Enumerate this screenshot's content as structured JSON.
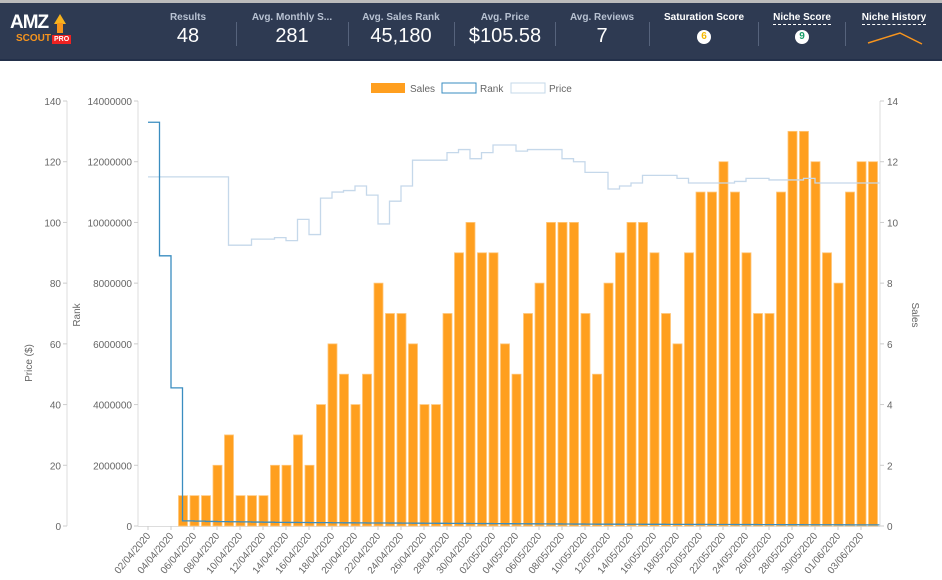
{
  "header": {
    "logo": {
      "amz": "AMZ",
      "scout": "SCOUT",
      "pro": "PRO"
    },
    "metrics": [
      {
        "label": "Results",
        "value": "48"
      },
      {
        "label": "Avg. Monthly S...",
        "value": "281"
      },
      {
        "label": "Avg. Sales Rank",
        "value": "45,180"
      },
      {
        "label": "Avg. Price",
        "value": "$105.58"
      },
      {
        "label": "Avg. Reviews",
        "value": "7"
      }
    ],
    "saturation": {
      "label": "Saturation Score",
      "value": "6",
      "color": "#f5b800"
    },
    "niche_score": {
      "label": "Niche Score",
      "value": "9",
      "color": "#1a9e6a"
    },
    "niche_history": {
      "label": "Niche History",
      "color": "#f7941d"
    }
  },
  "chart_data": {
    "type": "bar+line",
    "legend": [
      "Sales",
      "Rank",
      "Price"
    ],
    "legend_placement": "top-center",
    "colors": {
      "sales": "#ff9f1f",
      "rank": "#3a8dc0",
      "price": "#c5d8ea"
    },
    "x_labels": [
      "02/04/2020",
      "04/04/2020",
      "06/04/2020",
      "08/04/2020",
      "10/04/2020",
      "12/04/2020",
      "14/04/2020",
      "16/04/2020",
      "18/04/2020",
      "20/04/2020",
      "22/04/2020",
      "24/04/2020",
      "26/04/2020",
      "28/04/2020",
      "30/04/2020",
      "02/05/2020",
      "04/05/2020",
      "06/05/2020",
      "08/05/2020",
      "10/05/2020",
      "12/05/2020",
      "14/05/2020",
      "16/05/2020",
      "18/05/2020",
      "20/05/2020",
      "22/05/2020",
      "24/05/2020",
      "26/05/2020",
      "28/05/2020",
      "30/05/2020",
      "01/06/2020",
      "03/06/2020"
    ],
    "days": 64,
    "first_day": "02/04/2020",
    "sales_start_day_index": 3,
    "sales": [
      1,
      1,
      1,
      2,
      3,
      1,
      1,
      1,
      2,
      2,
      3,
      2,
      4,
      6,
      5,
      4,
      5,
      8,
      7,
      7,
      6,
      4,
      4,
      7,
      9,
      10,
      9,
      9,
      6,
      5,
      7,
      8,
      10,
      10,
      10,
      7,
      5,
      8,
      9,
      10,
      10,
      9,
      7,
      6,
      9,
      11,
      11,
      12,
      11,
      9,
      7,
      7,
      11,
      13,
      13,
      12,
      9,
      8,
      11,
      12,
      12
    ],
    "rank": [
      13300000,
      8900000,
      4550000,
      170000,
      160000,
      150000,
      145000,
      140000,
      135000,
      130000,
      125000,
      120000,
      118000,
      115000,
      112000,
      110000,
      108000,
      105000,
      103000,
      100000,
      98000,
      96000,
      94000,
      92000,
      90000,
      88000,
      86000,
      84000,
      82000,
      80000,
      78000,
      76000,
      74000,
      72000,
      70000,
      68000,
      66000,
      64000,
      62000,
      60000,
      59000,
      58000,
      57000,
      56000,
      55000,
      54000,
      53000,
      52000,
      51000,
      50000,
      49000,
      48000,
      47000,
      46000,
      45000,
      44000,
      43000,
      42000,
      41000,
      40000,
      39000,
      38000,
      37000,
      36000
    ],
    "price": [
      115,
      115,
      115,
      115,
      115,
      115,
      115,
      92.5,
      92.5,
      94.5,
      94.5,
      95,
      94,
      101,
      96,
      108,
      110,
      110.5,
      112,
      109,
      99.5,
      107,
      112,
      120.5,
      120.5,
      120.5,
      123,
      124,
      121,
      123,
      125.5,
      125.5,
      123.5,
      124,
      124,
      124,
      121,
      120,
      116.5,
      116.5,
      111,
      112,
      113,
      115.5,
      115.5,
      115.5,
      114.5,
      113,
      113,
      113,
      113,
      113.5,
      114.5,
      114.5,
      114,
      114,
      114,
      114.5,
      113,
      113,
      113,
      113,
      113,
      113
    ],
    "left_axis": {
      "label": "Price ($)",
      "ticks": [
        "0",
        "20",
        "40",
        "60",
        "80",
        "100",
        "120",
        "140"
      ],
      "range": [
        0,
        140
      ]
    },
    "rank_axis": {
      "label": "Rank",
      "ticks": [
        "0",
        "2000000",
        "4000000",
        "6000000",
        "8000000",
        "10000000",
        "12000000",
        "14000000"
      ],
      "range": [
        0,
        14000000
      ]
    },
    "right_axis": {
      "label": "Sales",
      "ticks": [
        "0",
        "2",
        "4",
        "6",
        "8",
        "10",
        "12",
        "14"
      ],
      "range": [
        0,
        14
      ]
    }
  }
}
